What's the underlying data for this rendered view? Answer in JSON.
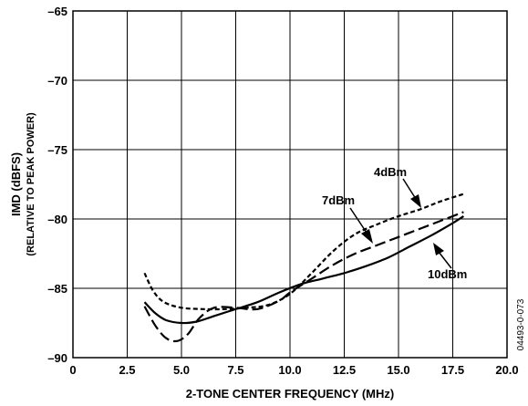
{
  "chart_data": {
    "type": "line",
    "xlabel": "2-TONE CENTER FREQUENCY (MHz)",
    "ylabel": "IMD (dBFS)",
    "ylabel_sub": "(RELATIVE TO PEAK POWER)",
    "xlim": [
      0,
      20
    ],
    "ylim": [
      -90,
      -65
    ],
    "x_ticks": [
      "0",
      "2.5",
      "5.0",
      "7.5",
      "10.0",
      "12.5",
      "15.0",
      "17.5",
      "20.0"
    ],
    "y_ticks": [
      "–65",
      "–70",
      "–75",
      "–80",
      "–85",
      "–90"
    ],
    "grid": true,
    "series": [
      {
        "name": "4dBm",
        "style": "short-dash",
        "x": [
          3.3,
          3.7,
          4.2,
          5.0,
          6.0,
          7.0,
          8.0,
          9.0,
          10.0,
          11.0,
          12.0,
          13.0,
          14.0,
          15.0,
          16.0,
          17.0,
          18.0
        ],
        "y": [
          -83.9,
          -85.2,
          -86.0,
          -86.4,
          -86.5,
          -86.5,
          -86.4,
          -86.2,
          -85.4,
          -83.9,
          -82.3,
          -81.1,
          -80.4,
          -79.8,
          -79.3,
          -78.7,
          -78.2
        ]
      },
      {
        "name": "7dBm",
        "style": "long-dash",
        "x": [
          3.3,
          3.8,
          4.3,
          4.8,
          5.3,
          5.8,
          6.5,
          7.5,
          8.5,
          9.5,
          10.0,
          11.0,
          12.0,
          13.0,
          14.0,
          15.0,
          16.0,
          17.0,
          18.0
        ],
        "y": [
          -86.3,
          -87.7,
          -88.6,
          -88.8,
          -88.3,
          -87.2,
          -86.4,
          -86.4,
          -86.5,
          -85.9,
          -85.3,
          -84.3,
          -83.3,
          -82.5,
          -81.9,
          -81.3,
          -80.7,
          -80.1,
          -79.5
        ]
      },
      {
        "name": "10dBm",
        "style": "solid",
        "x": [
          3.3,
          3.8,
          4.3,
          5.0,
          5.7,
          6.5,
          7.5,
          8.5,
          9.5,
          10.5,
          11.5,
          12.5,
          13.5,
          14.5,
          15.5,
          16.5,
          17.5,
          18.0
        ],
        "y": [
          -86.0,
          -86.8,
          -87.3,
          -87.5,
          -87.4,
          -87.0,
          -86.5,
          -86.0,
          -85.3,
          -84.7,
          -84.3,
          -83.9,
          -83.4,
          -82.8,
          -82.0,
          -81.2,
          -80.3,
          -79.8
        ]
      }
    ],
    "annotations": [
      {
        "text": "4dBm",
        "points_to_series": "4dBm"
      },
      {
        "text": "7dBm",
        "points_to_series": "7dBm"
      },
      {
        "text": "10dBm",
        "points_to_series": "10dBm"
      }
    ],
    "figure_id": "04493-0-073"
  }
}
